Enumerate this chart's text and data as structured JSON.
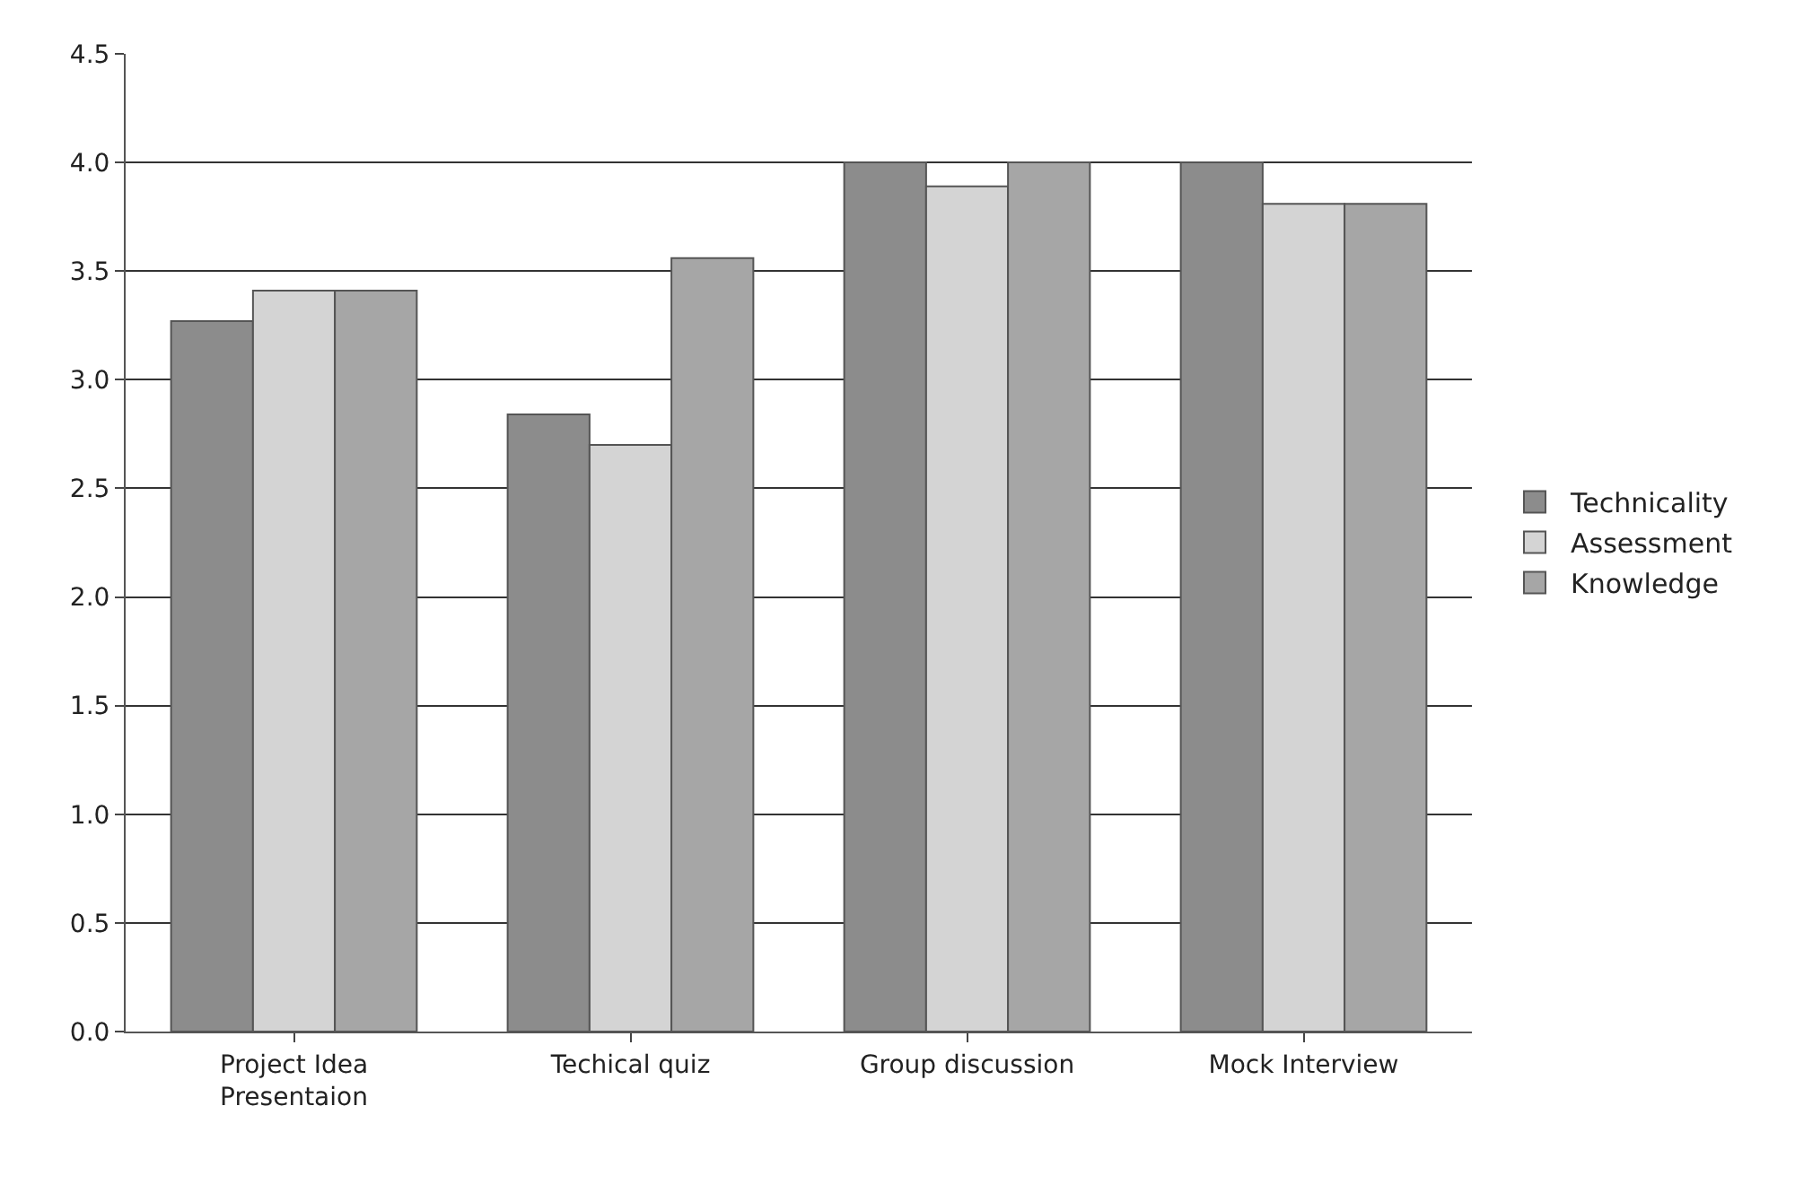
{
  "chart_data": {
    "type": "bar",
    "categories": [
      "Project Idea Presentaion",
      "Techical quiz",
      "Group discussion",
      "Mock Interview"
    ],
    "series": [
      {
        "name": "Technicality",
        "color": "#8c8c8c",
        "values": [
          3.27,
          2.84,
          4.0,
          4.0
        ]
      },
      {
        "name": "Assessment",
        "color": "#d4d4d4",
        "values": [
          3.41,
          2.7,
          3.89,
          3.81
        ]
      },
      {
        "name": "Knowledge",
        "color": "#a6a6a6",
        "values": [
          3.41,
          3.56,
          4.0,
          3.81
        ]
      }
    ],
    "ylim": [
      0,
      4.5
    ],
    "yticks": [
      {
        "value": 0,
        "label": "0.0"
      },
      0.5,
      {
        "value": 1,
        "label": "1.0"
      },
      1.5,
      {
        "value": 2,
        "label": "2.0"
      },
      2.5,
      {
        "value": 3,
        "label": "3.0"
      },
      3.5,
      {
        "value": 4,
        "label": "4.0"
      },
      4.5
    ],
    "grid": "y",
    "legend": "right"
  }
}
